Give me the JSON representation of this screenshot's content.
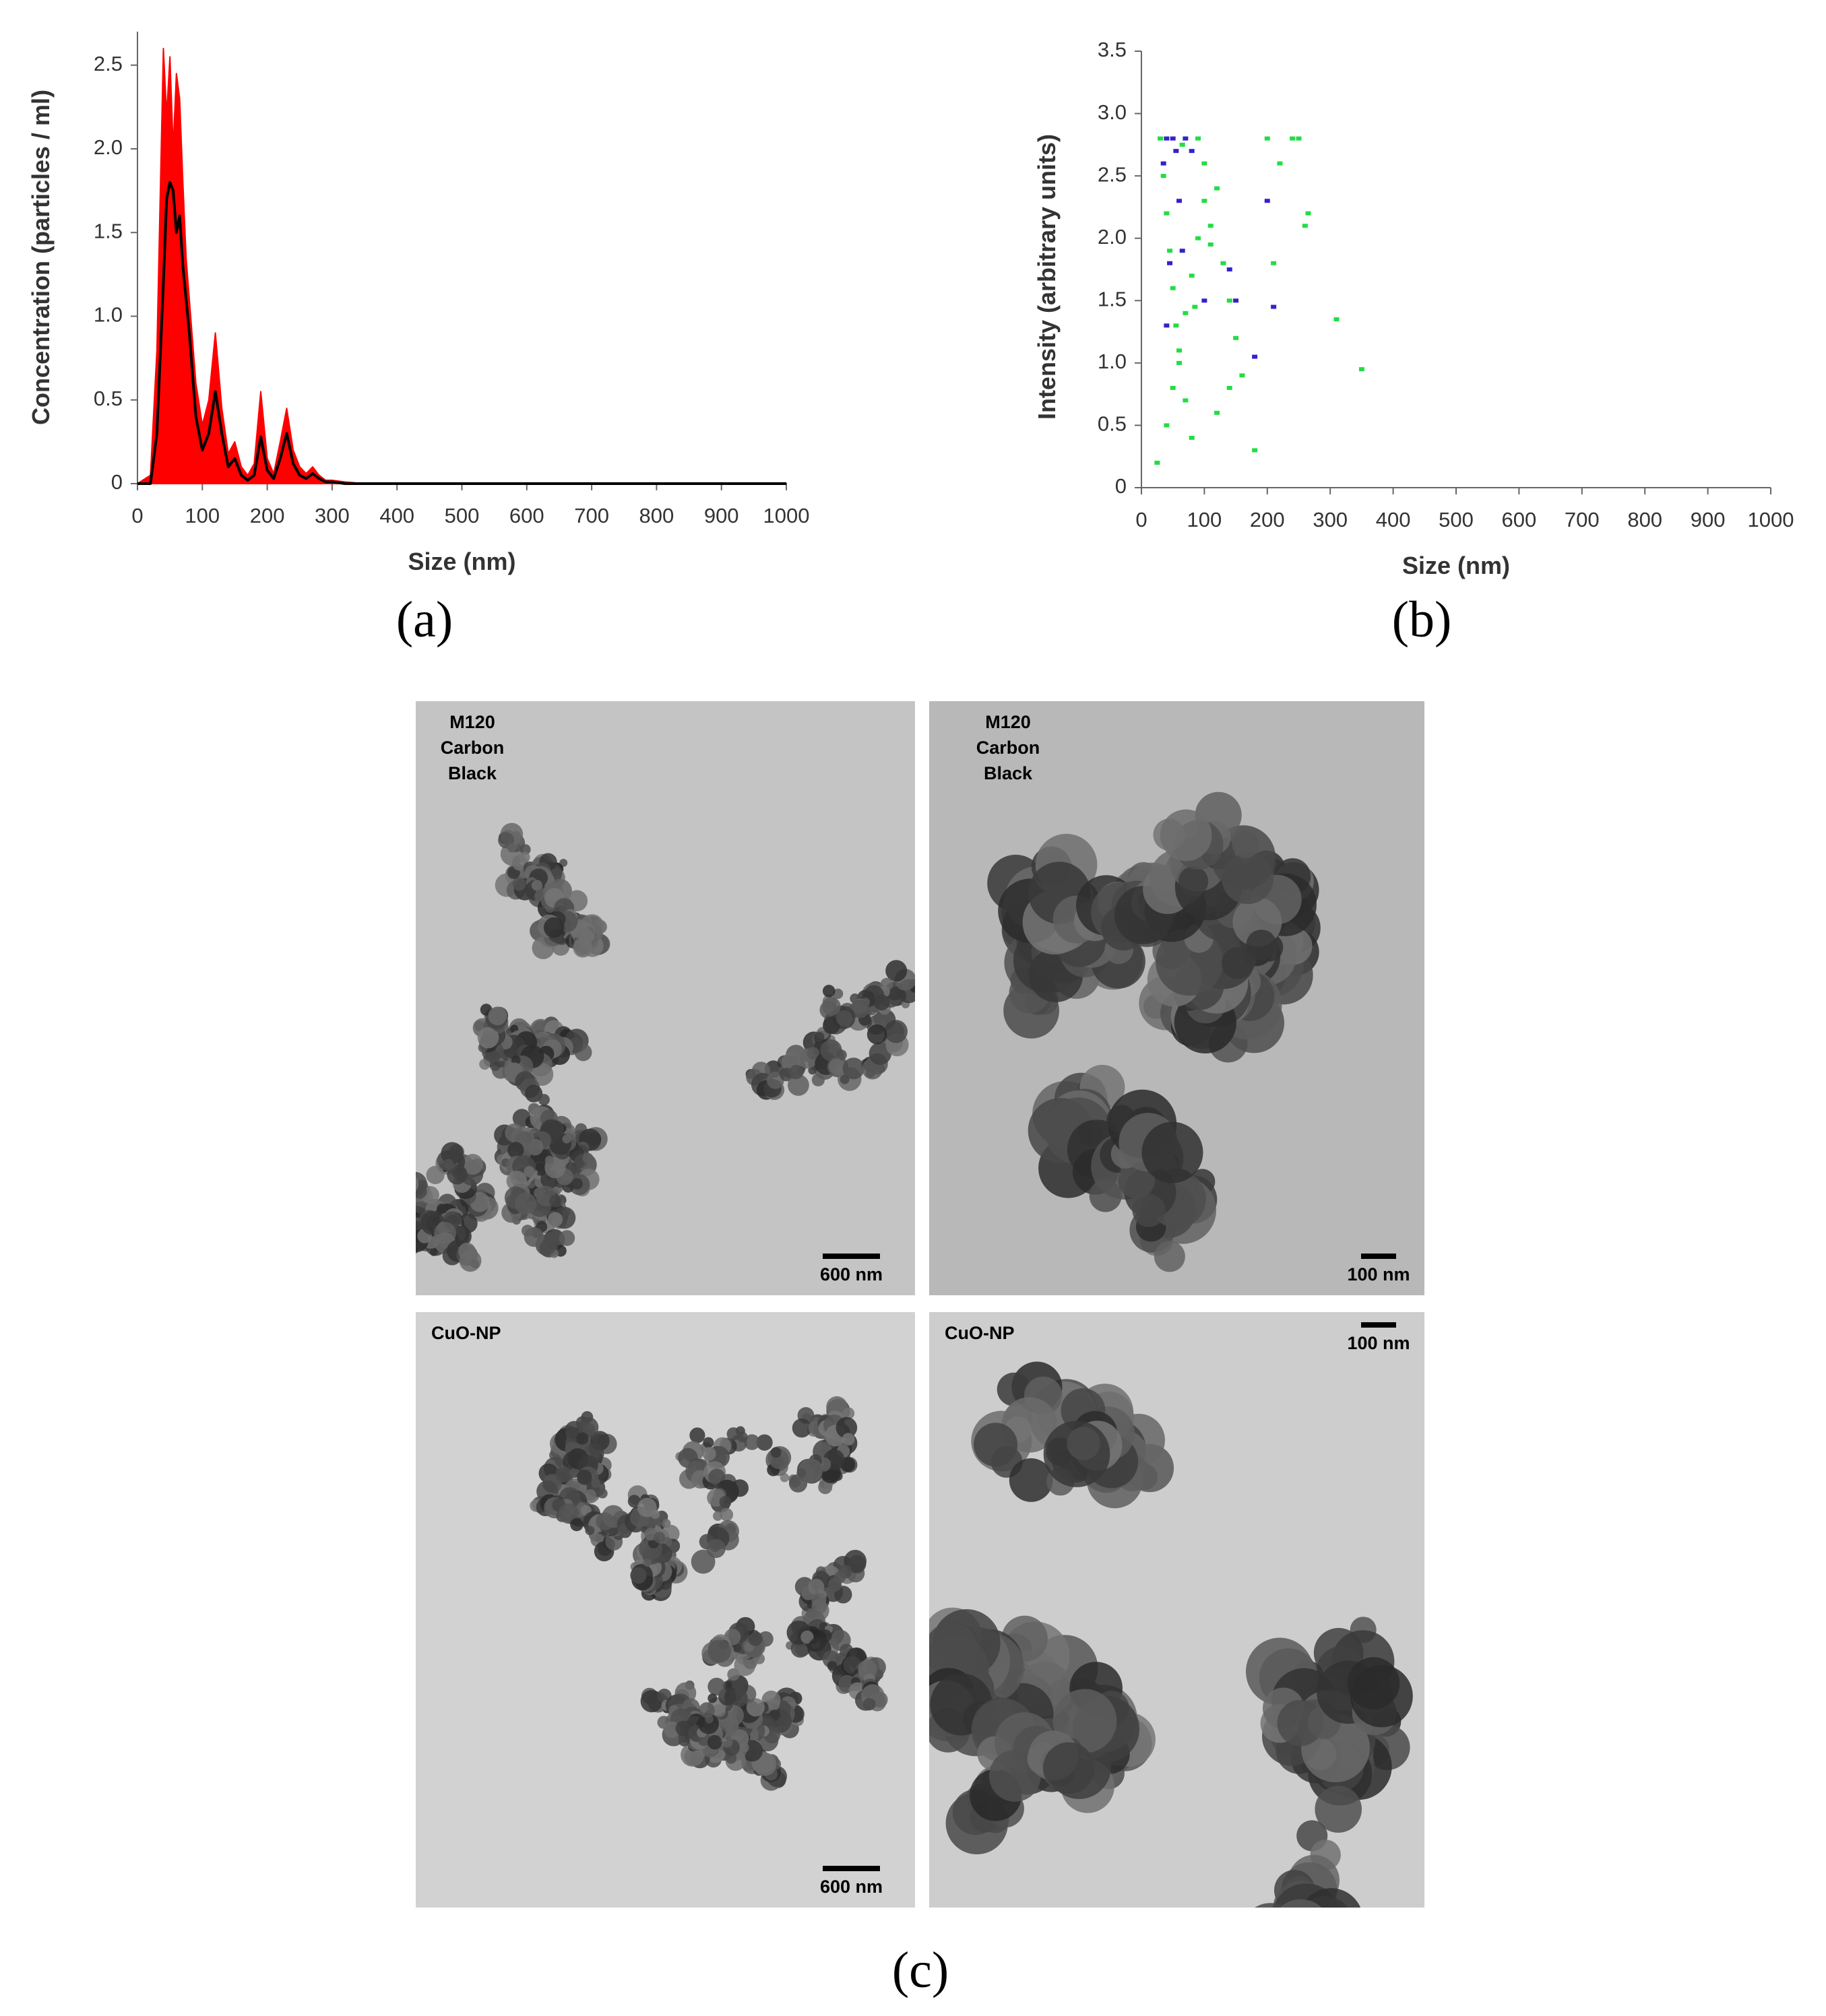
{
  "chart_data": [
    {
      "type": "line",
      "xlabel": "Size (nm)",
      "ylabel": "Concentration (particles / ml)",
      "x": [
        0,
        20,
        30,
        40,
        45,
        50,
        55,
        60,
        65,
        70,
        75,
        80,
        90,
        100,
        110,
        120,
        130,
        140,
        150,
        160,
        170,
        180,
        190,
        200,
        210,
        220,
        230,
        240,
        250,
        260,
        270,
        280,
        290,
        300,
        320,
        350,
        400,
        1000
      ],
      "series": [
        {
          "color": "#ff0000",
          "fill": true,
          "values": [
            0,
            0.05,
            0.8,
            2.6,
            2.2,
            2.55,
            2.0,
            2.45,
            2.3,
            1.8,
            1.35,
            1.1,
            0.6,
            0.35,
            0.5,
            0.9,
            0.45,
            0.18,
            0.25,
            0.1,
            0.05,
            0.12,
            0.55,
            0.15,
            0.06,
            0.25,
            0.45,
            0.2,
            0.1,
            0.06,
            0.1,
            0.05,
            0.02,
            0.02,
            0.01,
            0,
            0,
            0
          ]
        },
        {
          "color": "#000000",
          "fill": false,
          "values": [
            0,
            0,
            0.3,
            1.2,
            1.7,
            1.8,
            1.75,
            1.5,
            1.6,
            1.3,
            1.1,
            0.9,
            0.4,
            0.2,
            0.3,
            0.55,
            0.3,
            0.1,
            0.15,
            0.05,
            0.02,
            0.05,
            0.28,
            0.08,
            0.03,
            0.15,
            0.3,
            0.12,
            0.05,
            0.03,
            0.06,
            0.03,
            0.01,
            0.01,
            0,
            0,
            0,
            0
          ]
        }
      ],
      "xlim": [
        0,
        1000
      ],
      "xticks": [
        0,
        100,
        200,
        300,
        400,
        500,
        600,
        700,
        800,
        900,
        1000
      ],
      "ylim": [
        0,
        2.7
      ],
      "yticks": [
        0,
        0.5,
        {
          "value": 1,
          "label": "1.0"
        },
        1.5,
        {
          "value": 2,
          "label": "2.0"
        },
        2.5
      ]
    },
    {
      "type": "scatter",
      "xlabel": "Size (nm)",
      "ylabel": "Intensity (arbitrary units)",
      "series": [
        {
          "color": "#22dd44",
          "x": [
            30,
            35,
            40,
            45,
            50,
            55,
            60,
            70,
            80,
            90,
            100,
            110,
            120,
            130,
            140,
            150,
            160,
            180,
            200,
            210,
            220,
            240,
            250,
            260,
            265,
            310,
            350,
            25,
            40,
            50,
            60,
            70,
            80,
            90,
            100,
            110,
            120,
            140,
            65,
            85
          ],
          "values": [
            2.8,
            2.5,
            2.2,
            1.9,
            1.6,
            1.3,
            1.0,
            0.7,
            0.4,
            2.8,
            2.6,
            2.1,
            2.4,
            1.8,
            1.5,
            1.2,
            0.9,
            0.3,
            2.8,
            1.8,
            2.6,
            2.8,
            2.8,
            2.1,
            2.2,
            1.35,
            0.95,
            0.2,
            0.5,
            0.8,
            1.1,
            1.4,
            1.7,
            2.0,
            2.3,
            1.95,
            0.6,
            0.8,
            2.75,
            1.45
          ]
        },
        {
          "color": "#3322cc",
          "x": [
            40,
            50,
            55,
            60,
            70,
            80,
            45,
            35,
            100,
            140,
            150,
            180,
            200,
            210,
            65,
            40
          ],
          "values": [
            2.8,
            2.8,
            2.7,
            2.3,
            2.8,
            2.7,
            1.8,
            2.6,
            1.5,
            1.75,
            1.5,
            1.05,
            2.3,
            1.45,
            1.9,
            1.3
          ]
        }
      ],
      "xlim": [
        0,
        1000
      ],
      "xticks": [
        0,
        100,
        200,
        300,
        400,
        500,
        600,
        700,
        800,
        900,
        1000
      ],
      "ylim": [
        0,
        3.5
      ],
      "yticks": [
        0,
        0.5,
        {
          "value": 1,
          "label": "1.0"
        },
        1.5,
        {
          "value": 2,
          "label": "2.0"
        },
        2.5,
        {
          "value": 3,
          "label": "3.0"
        },
        3.5
      ]
    }
  ],
  "panel_labels": [
    "(a)",
    "(b)",
    "(c)"
  ],
  "micrographs": [
    {
      "label": [
        "M120",
        "Carbon",
        "Black"
      ],
      "scale_bar": "600 nm"
    },
    {
      "label": [
        "M120",
        "Carbon",
        "Black"
      ],
      "scale_bar": "100 nm"
    },
    {
      "label": [
        "CuO-NP"
      ],
      "scale_bar": "600 nm"
    },
    {
      "label": [
        "CuO-NP"
      ],
      "scale_bar": "100 nm"
    }
  ]
}
